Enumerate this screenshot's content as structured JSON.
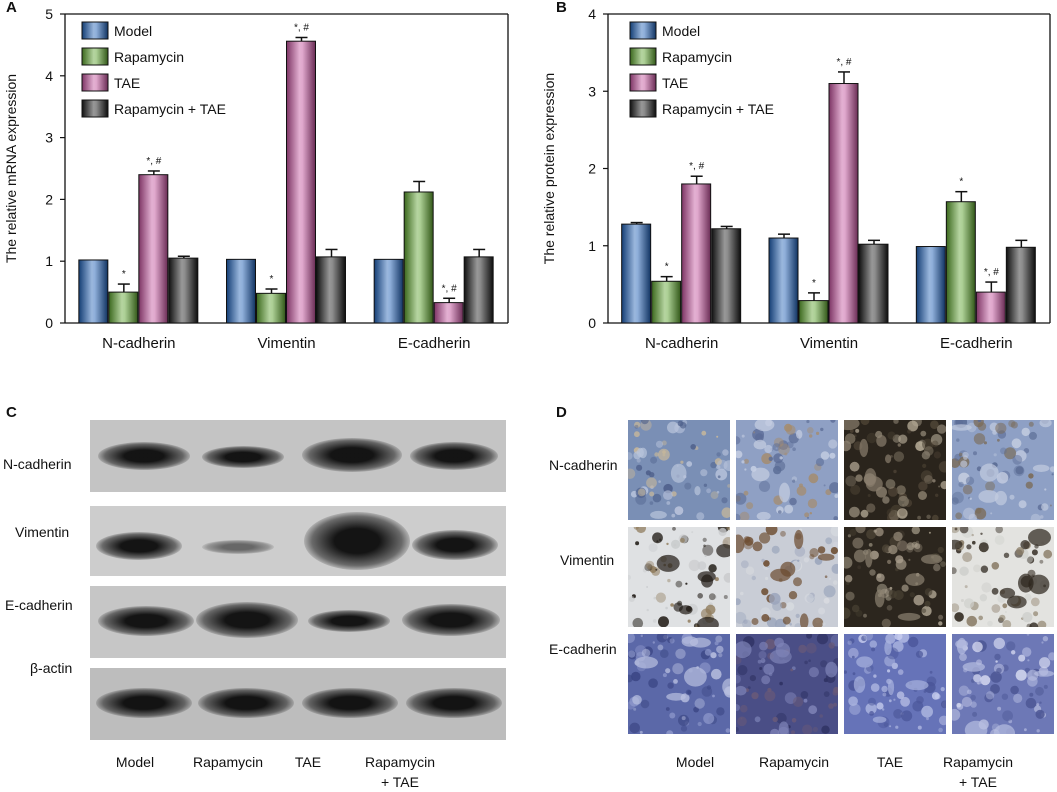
{
  "panels": {
    "a": "A",
    "b": "B",
    "c": "C",
    "d": "D"
  },
  "colors": {
    "Model": "#1f5fb4",
    "Rapamycin": "#5aa02c",
    "TAE": "#c0509a",
    "Rapamycin + TAE": "#1a1a1a"
  },
  "chart_data": [
    {
      "type": "bar",
      "panel": "A",
      "ylabel": "The relative mRNA expression",
      "categories": [
        "N-cadherin",
        "Vimentin",
        "E-cadherin"
      ],
      "ylim": [
        0,
        5
      ],
      "yticks": [
        "0",
        "1",
        "2",
        "3",
        "4",
        "5"
      ],
      "legend_position": "top-left",
      "series": [
        {
          "name": "Model",
          "values": [
            1.02,
            1.03,
            1.03
          ],
          "errors": [
            0.0,
            0.0,
            0.0
          ],
          "annotations": [
            "",
            "",
            ""
          ]
        },
        {
          "name": "Rapamycin",
          "values": [
            0.5,
            0.48,
            2.12
          ],
          "errors": [
            0.13,
            0.07,
            0.17
          ],
          "annotations": [
            "*",
            "*",
            ""
          ]
        },
        {
          "name": "TAE",
          "values": [
            2.4,
            4.56,
            0.33
          ],
          "errors": [
            0.06,
            0.06,
            0.07
          ],
          "annotations": [
            "*, #",
            "*, #",
            "*, #"
          ]
        },
        {
          "name": "Rapamycin + TAE",
          "values": [
            1.05,
            1.07,
            1.07
          ],
          "errors": [
            0.03,
            0.12,
            0.12
          ],
          "annotations": [
            "",
            "",
            ""
          ]
        }
      ]
    },
    {
      "type": "bar",
      "panel": "B",
      "ylabel": "The relative protein expression",
      "categories": [
        "N-cadherin",
        "Vimentin",
        "E-cadherin"
      ],
      "ylim": [
        0,
        4
      ],
      "yticks": [
        "0",
        "1",
        "2",
        "3",
        "4"
      ],
      "legend_position": "top-left",
      "series": [
        {
          "name": "Model",
          "values": [
            1.28,
            1.1,
            0.99
          ],
          "errors": [
            0.02,
            0.05,
            0.0
          ],
          "annotations": [
            "",
            "",
            ""
          ]
        },
        {
          "name": "Rapamycin",
          "values": [
            0.54,
            0.29,
            1.57
          ],
          "errors": [
            0.06,
            0.1,
            0.13
          ],
          "annotations": [
            "*",
            "*",
            "*"
          ]
        },
        {
          "name": "TAE",
          "values": [
            1.8,
            3.1,
            0.4
          ],
          "errors": [
            0.1,
            0.15,
            0.13
          ],
          "annotations": [
            "*, #",
            "*, #",
            "*, #"
          ]
        },
        {
          "name": "Rapamycin + TAE",
          "values": [
            1.22,
            1.02,
            0.98
          ],
          "errors": [
            0.03,
            0.05,
            0.09
          ],
          "annotations": [
            "",
            "",
            ""
          ]
        }
      ]
    }
  ],
  "blot": {
    "row_labels": [
      "N-cadherin",
      "Vimentin",
      "E-cadherin",
      "β-actin"
    ],
    "lanes": [
      "Model",
      "Rapamycin",
      "TAE",
      "Rapamycin\n+ TAE"
    ]
  },
  "ihc": {
    "row_labels": [
      "N-cadherin",
      "Vimentin",
      "E-cadherin"
    ],
    "lanes": [
      "Model",
      "Rapamycin",
      "TAE",
      "Rapamycin\n+ TAE"
    ]
  }
}
